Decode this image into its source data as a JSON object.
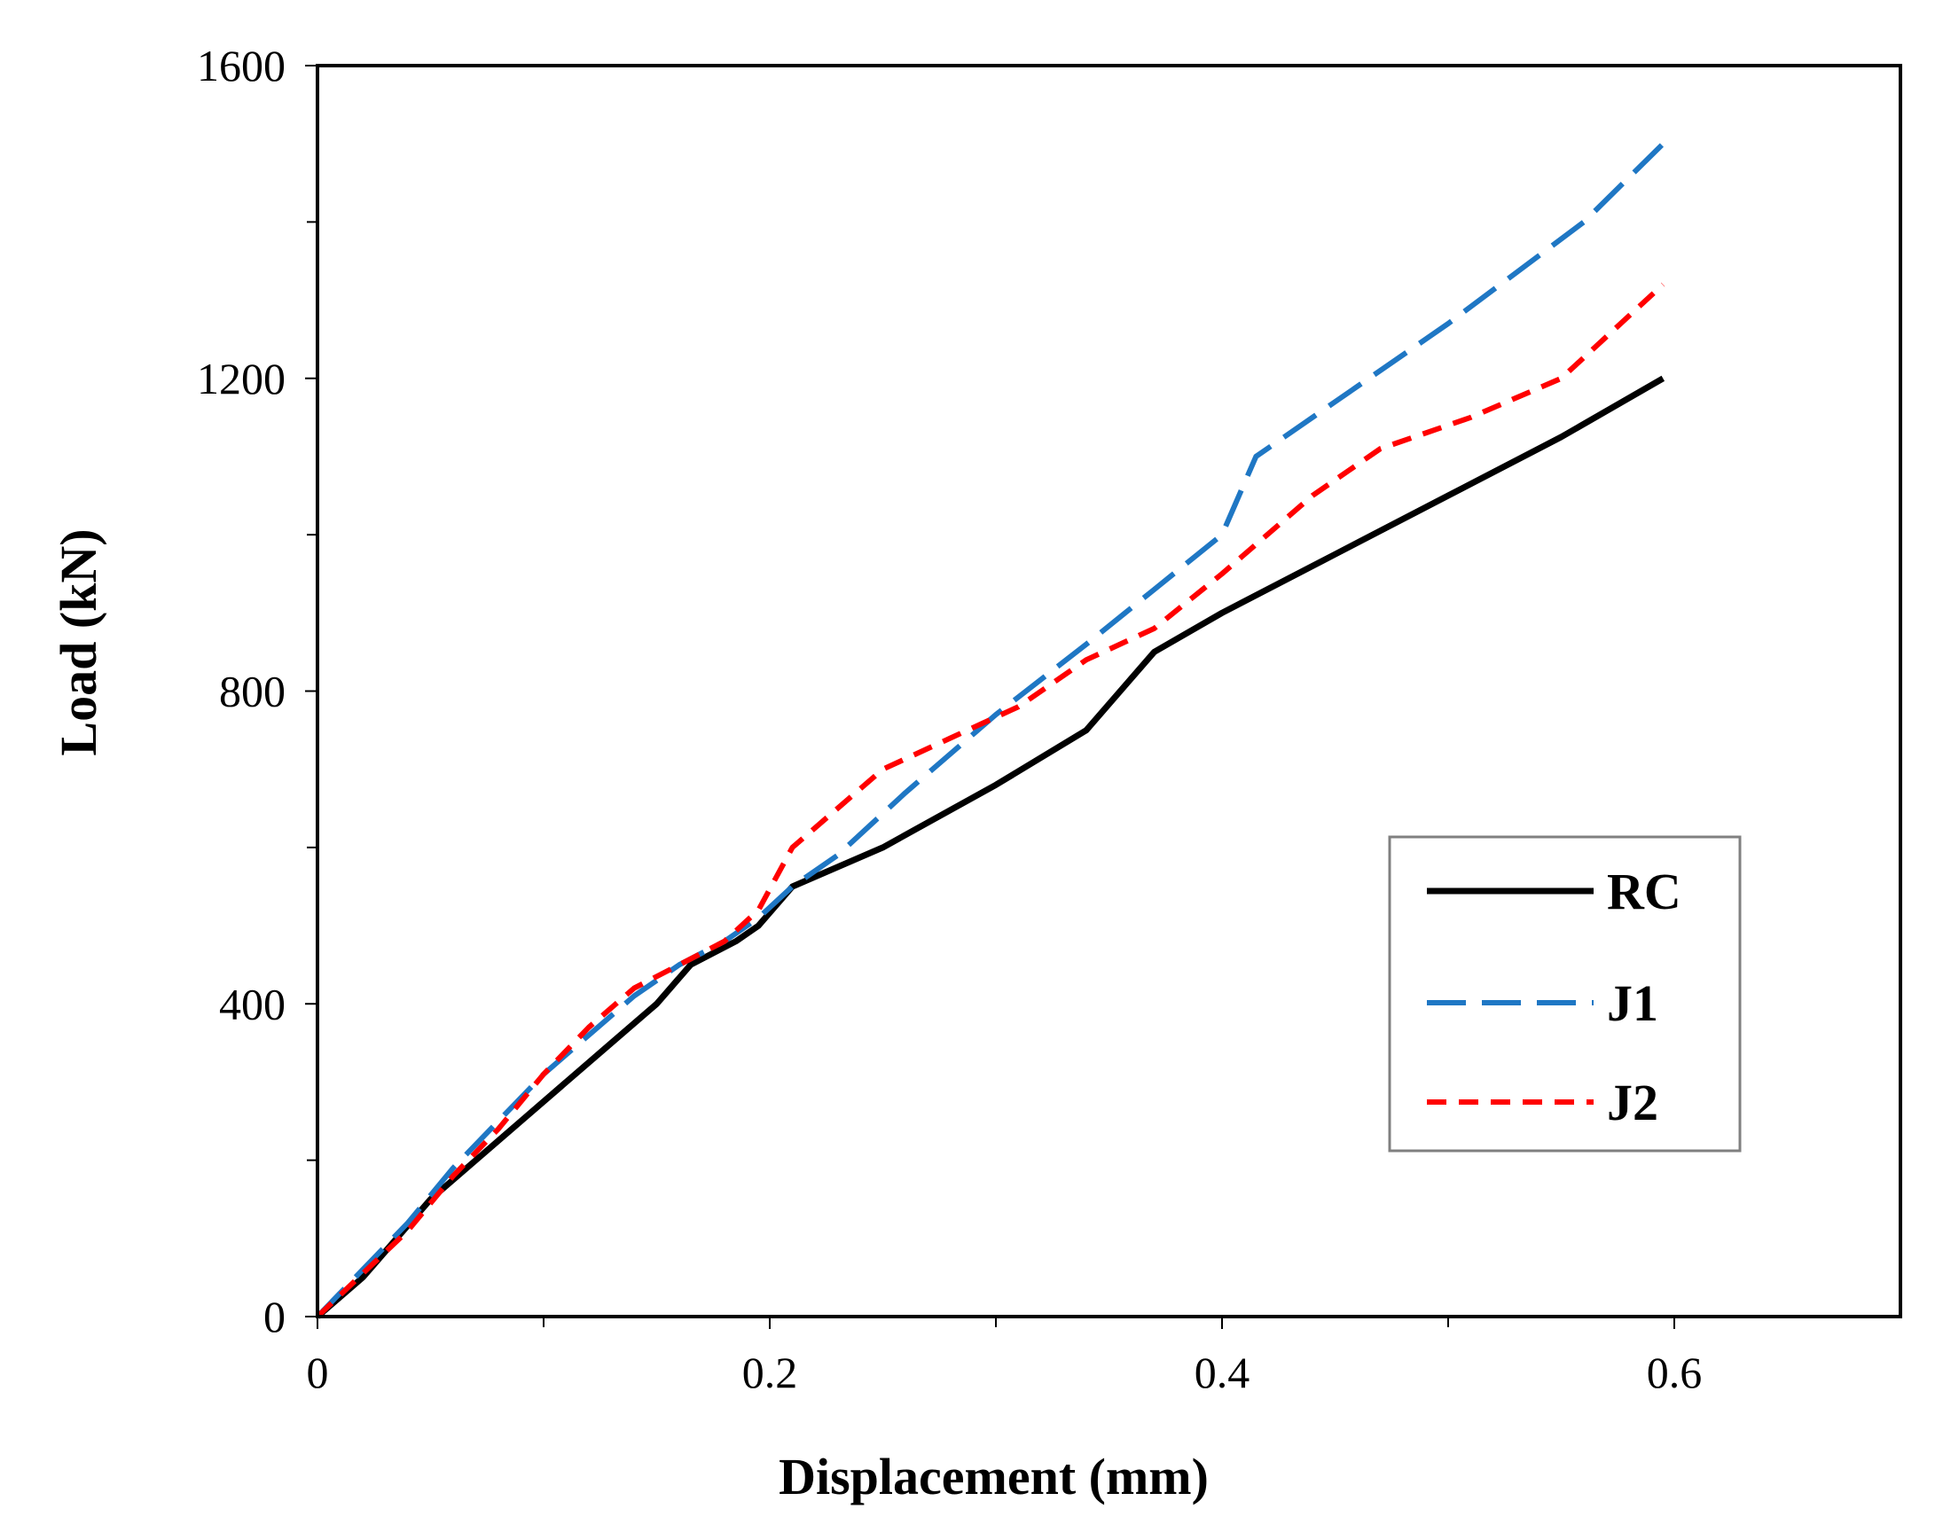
{
  "chart_data": {
    "type": "line",
    "title": "",
    "xlabel": "Displacement (mm)",
    "ylabel": "Load (kN)",
    "xlim": [
      0,
      0.7
    ],
    "ylim": [
      0,
      1600
    ],
    "x_ticks": [
      0,
      0.2,
      0.4,
      0.6
    ],
    "x_tick_labels": [
      "0",
      "0.2",
      "0.4",
      "0.6"
    ],
    "x_minor_ticks": [
      0.1,
      0.3,
      0.5
    ],
    "y_ticks": [
      0,
      400,
      800,
      1200,
      1600
    ],
    "y_tick_labels": [
      "0",
      "400",
      "800",
      "1200",
      "1600"
    ],
    "y_minor_ticks": [
      200,
      600,
      1000,
      1400
    ],
    "grid": false,
    "legend_position": "right",
    "series": [
      {
        "name": "RC",
        "color": "#000000",
        "dash": "solid",
        "x": [
          0,
          0.02,
          0.035,
          0.05,
          0.07,
          0.09,
          0.11,
          0.13,
          0.15,
          0.165,
          0.185,
          0.195,
          0.21,
          0.25,
          0.3,
          0.34,
          0.37,
          0.4,
          0.45,
          0.5,
          0.55,
          0.595
        ],
        "y": [
          0,
          50,
          100,
          150,
          200,
          250,
          300,
          350,
          400,
          450,
          480,
          500,
          550,
          600,
          680,
          750,
          850,
          900,
          975,
          1050,
          1125,
          1200
        ]
      },
      {
        "name": "J1",
        "color": "#1f77c4",
        "dash": "longdash",
        "x": [
          0,
          0.02,
          0.04,
          0.06,
          0.08,
          0.1,
          0.12,
          0.14,
          0.16,
          0.18,
          0.195,
          0.21,
          0.23,
          0.26,
          0.3,
          0.34,
          0.37,
          0.4,
          0.415,
          0.45,
          0.5,
          0.56,
          0.595
        ],
        "y": [
          0,
          60,
          120,
          190,
          250,
          310,
          360,
          410,
          450,
          480,
          510,
          550,
          590,
          670,
          770,
          860,
          930,
          1000,
          1100,
          1170,
          1270,
          1400,
          1500
        ]
      },
      {
        "name": "J2",
        "color": "#ff0000",
        "dash": "shortdash",
        "x": [
          0,
          0.02,
          0.04,
          0.06,
          0.08,
          0.1,
          0.12,
          0.14,
          0.16,
          0.18,
          0.195,
          0.21,
          0.23,
          0.25,
          0.28,
          0.31,
          0.34,
          0.37,
          0.4,
          0.44,
          0.47,
          0.51,
          0.55,
          0.595
        ],
        "y": [
          0,
          55,
          110,
          180,
          240,
          310,
          370,
          420,
          450,
          480,
          520,
          600,
          650,
          700,
          740,
          780,
          840,
          880,
          950,
          1050,
          1110,
          1150,
          1200,
          1320
        ]
      }
    ]
  }
}
